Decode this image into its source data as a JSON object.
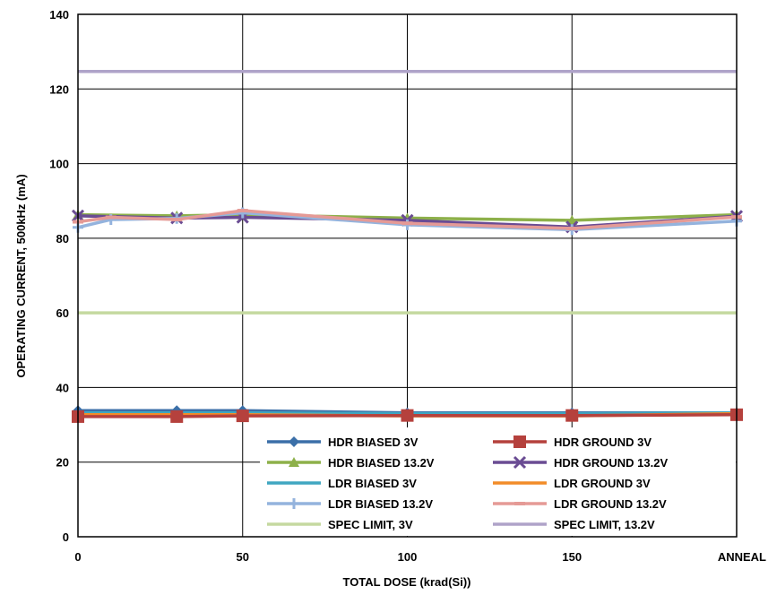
{
  "chart_data": {
    "type": "line",
    "title": "",
    "xlabel": "TOTAL  DOSE (krad(Si))",
    "ylabel": "OPERATING CURRENT, 500kHz (mA)",
    "x_tick_labels": [
      "0",
      "50",
      "100",
      "150",
      "ANNEAL"
    ],
    "x_tick_values": [
      0,
      50,
      100,
      150,
      200
    ],
    "y_ticks": [
      0,
      20,
      40,
      60,
      80,
      100,
      120,
      140
    ],
    "xlim": [
      0,
      200
    ],
    "ylim": [
      0,
      140
    ],
    "grid": true,
    "legend_position": "lower-right",
    "series": [
      {
        "name": "HDR BIASED  3V",
        "color": "#3B6FA8",
        "marker": "diamond",
        "x": [
          0,
          30,
          50,
          100,
          150,
          200
        ],
        "y": [
          33.8,
          33.8,
          33.8,
          33.2,
          33.2,
          33.2
        ]
      },
      {
        "name": "HDR GROUND 3V",
        "color": "#B5413D",
        "marker": "square",
        "x": [
          0,
          30,
          50,
          100,
          150,
          200
        ],
        "y": [
          32.2,
          32.2,
          32.4,
          32.5,
          32.5,
          32.7
        ]
      },
      {
        "name": "HDR BIASED  13.2V",
        "color": "#8DB04A",
        "marker": "triangle",
        "x": [
          0,
          30,
          50,
          100,
          150,
          200
        ],
        "y": [
          86.3,
          86.0,
          86.3,
          85.4,
          84.8,
          86.3
        ]
      },
      {
        "name": "HDR GROUND 13.2V",
        "color": "#6A4C93",
        "marker": "x",
        "x": [
          0,
          30,
          50,
          100,
          150,
          200
        ],
        "y": [
          86.0,
          85.4,
          85.6,
          84.8,
          83.0,
          85.9
        ]
      },
      {
        "name": "LDR BIASED  3V",
        "color": "#3FA6C1",
        "marker": "none",
        "x": [
          0,
          50,
          100,
          150,
          200
        ],
        "y": [
          33.2,
          33.2,
          33.0,
          33.0,
          33.2
        ]
      },
      {
        "name": "LDR GROUND 3V",
        "color": "#F28C28",
        "marker": "none",
        "x": [
          0,
          50,
          100,
          150,
          200
        ],
        "y": [
          32.7,
          32.7,
          32.4,
          32.4,
          33.0
        ]
      },
      {
        "name": "LDR BIASED  13.2V",
        "color": "#94B3DD",
        "marker": "plus",
        "x": [
          0,
          10,
          30,
          50,
          100,
          150,
          200
        ],
        "y": [
          82.9,
          85.0,
          85.3,
          86.8,
          83.6,
          82.3,
          84.6
        ]
      },
      {
        "name": "LDR GROUND 13.2V",
        "color": "#E59A96",
        "marker": "dash",
        "x": [
          0,
          10,
          30,
          50,
          100,
          150,
          200
        ],
        "y": [
          84.4,
          85.6,
          85.0,
          87.4,
          84.0,
          82.6,
          85.7
        ]
      },
      {
        "name": "SPEC LIMIT, 3V",
        "color": "#C5D9A0",
        "marker": "none",
        "x": [
          0,
          200
        ],
        "y": [
          60,
          60
        ]
      },
      {
        "name": "SPEC LIMIT, 13.2V",
        "color": "#AFA3C9",
        "marker": "none",
        "x": [
          0,
          200
        ],
        "y": [
          124.7,
          124.7
        ]
      }
    ]
  }
}
